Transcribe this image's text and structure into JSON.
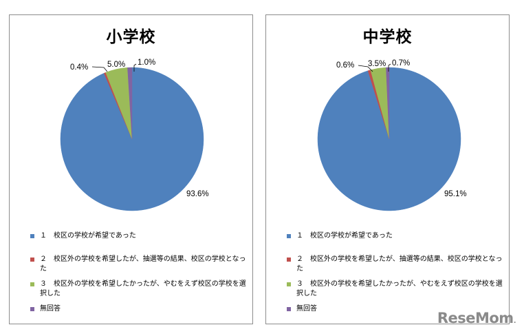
{
  "chart_data": [
    {
      "type": "pie",
      "title": "小学校",
      "categories": [
        "1　校区の学校が希望であった",
        "2　校区外の学校を希望したが、抽選等の結果、校区の学校となった",
        "3　校区外の学校を希望したかったが、やむをえず校区の学校を選択した",
        "無回答"
      ],
      "values": [
        93.6,
        0.4,
        5.0,
        1.0
      ],
      "labels": [
        "93.6%",
        "0.4%",
        "5.0%",
        "1.0%"
      ],
      "colors": [
        "#4f81bd",
        "#c0504d",
        "#9bbb59",
        "#8064a2"
      ],
      "start_angle": "12 o'clock, clockwise",
      "legend_position": "bottom"
    },
    {
      "type": "pie",
      "title": "中学校",
      "categories": [
        "1　校区の学校が希望であった",
        "2　校区外の学校を希望したが、抽選等の結果、校区の学校となった",
        "3　校区外の学校を希望したかったが、やむをえず校区の学校を選択した",
        "無回答"
      ],
      "values": [
        95.1,
        0.6,
        3.5,
        0.7
      ],
      "labels": [
        "95.1%",
        "0.6%",
        "3.5%",
        "0.7%"
      ],
      "colors": [
        "#4f81bd",
        "#c0504d",
        "#9bbb59",
        "#8064a2"
      ],
      "start_angle": "12 o'clock, clockwise",
      "legend_position": "bottom"
    }
  ],
  "panels": [
    {
      "title": "小学校",
      "labels": {
        "s1": "93.6%",
        "s2": "0.4%",
        "s3": "5.0%",
        "s4": "1.0%"
      },
      "legend": [
        "１　校区の学校が希望であった",
        "２　校区外の学校を希望したが、抽選等の結果、校区の学校となった",
        "３　校区外の学校を希望したかったが、やむをえず校区の学校を選択した",
        "無回答"
      ]
    },
    {
      "title": "中学校",
      "labels": {
        "s1": "95.1%",
        "s2": "0.6%",
        "s3": "3.5%",
        "s4": "0.7%"
      },
      "legend": [
        "１　校区の学校が希望であった",
        "２　校区外の学校を希望したが、抽選等の結果、校区の学校となった",
        "３　校区外の学校を希望したかったが、やむをえず校区の学校を選択した",
        "無回答"
      ]
    }
  ],
  "watermark": {
    "text": "ReseMom",
    "dot": "."
  }
}
